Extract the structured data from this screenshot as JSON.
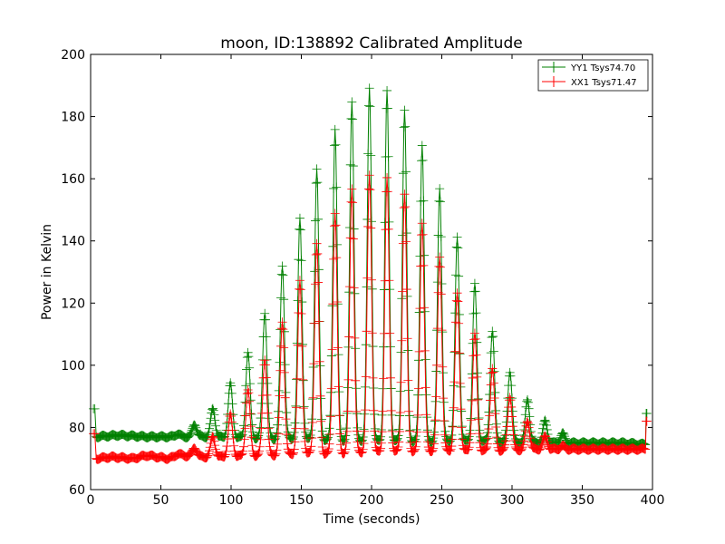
{
  "chart_data": {
    "type": "line",
    "title": "moon, ID:138892 Calibrated Amplitude",
    "xlabel": "Time (seconds)",
    "ylabel": "Power in Kelvin",
    "xlim": [
      0,
      400
    ],
    "ylim": [
      60,
      200
    ],
    "xticks": [
      "0",
      "50",
      "100",
      "150",
      "200",
      "250",
      "300",
      "350",
      "400"
    ],
    "yticks": [
      "60",
      "80",
      "100",
      "120",
      "140",
      "160",
      "180",
      "200"
    ],
    "grid": false,
    "legend_position": "top-right",
    "marker": "plus",
    "series": [
      {
        "name": "YY1 Tsys74.70",
        "color": "#008000",
        "start": [
          [
            2,
            86
          ],
          [
            3,
            86
          ],
          [
            4,
            77
          ]
        ],
        "base_points": [
          [
            4,
            77
          ],
          [
            20,
            77.5
          ],
          [
            40,
            77
          ],
          [
            60,
            77
          ],
          [
            80,
            77
          ],
          [
            120,
            76.5
          ],
          [
            160,
            76
          ],
          [
            200,
            75.5
          ],
          [
            240,
            75.5
          ],
          [
            280,
            75.5
          ],
          [
            320,
            75
          ],
          [
            350,
            75
          ],
          [
            380,
            75
          ],
          [
            395,
            74.5
          ]
        ],
        "peaks": [
          {
            "x": 62,
            "y": 78
          },
          {
            "x": 74,
            "y": 81
          },
          {
            "x": 87,
            "y": 86
          },
          {
            "x": 99.5,
            "y": 94
          },
          {
            "x": 112,
            "y": 104
          },
          {
            "x": 124,
            "y": 117
          },
          {
            "x": 136.5,
            "y": 132
          },
          {
            "x": 149,
            "y": 147
          },
          {
            "x": 161,
            "y": 163
          },
          {
            "x": 174,
            "y": 176
          },
          {
            "x": 186,
            "y": 185
          },
          {
            "x": 198.5,
            "y": 189
          },
          {
            "x": 211,
            "y": 188
          },
          {
            "x": 223.5,
            "y": 182
          },
          {
            "x": 236,
            "y": 171
          },
          {
            "x": 248.5,
            "y": 157
          },
          {
            "x": 261,
            "y": 141
          },
          {
            "x": 273.5,
            "y": 126
          },
          {
            "x": 286,
            "y": 111
          },
          {
            "x": 298.5,
            "y": 98
          },
          {
            "x": 311,
            "y": 89
          },
          {
            "x": 323.5,
            "y": 82
          },
          {
            "x": 336,
            "y": 78
          }
        ],
        "end": [
          [
            395,
            74.5
          ],
          [
            395.5,
            84.5
          ],
          [
            396,
            84.5
          ]
        ]
      },
      {
        "name": "XX1 Tsys71.47",
        "color": "#ff0000",
        "start": [
          [
            2,
            78
          ],
          [
            3,
            78
          ],
          [
            4,
            70
          ]
        ],
        "base_points": [
          [
            4,
            70
          ],
          [
            15,
            70.5
          ],
          [
            30,
            70
          ],
          [
            40,
            71
          ],
          [
            55,
            70
          ],
          [
            65,
            71
          ],
          [
            80,
            70.5
          ],
          [
            95,
            70.5
          ],
          [
            120,
            71
          ],
          [
            160,
            71.5
          ],
          [
            200,
            72
          ],
          [
            240,
            72.5
          ],
          [
            280,
            72.5
          ],
          [
            320,
            73
          ],
          [
            350,
            73
          ],
          [
            370,
            73
          ],
          [
            385,
            73
          ],
          [
            395,
            73
          ]
        ],
        "peaks": [
          {
            "x": 62,
            "y": 71.5
          },
          {
            "x": 74,
            "y": 73.5
          },
          {
            "x": 87,
            "y": 77
          },
          {
            "x": 99.5,
            "y": 84
          },
          {
            "x": 112,
            "y": 92
          },
          {
            "x": 124,
            "y": 102
          },
          {
            "x": 136.5,
            "y": 114
          },
          {
            "x": 149,
            "y": 127
          },
          {
            "x": 161,
            "y": 139
          },
          {
            "x": 174,
            "y": 149
          },
          {
            "x": 186,
            "y": 157
          },
          {
            "x": 198.5,
            "y": 161
          },
          {
            "x": 211,
            "y": 160
          },
          {
            "x": 223.5,
            "y": 155
          },
          {
            "x": 236,
            "y": 146
          },
          {
            "x": 248.5,
            "y": 135
          },
          {
            "x": 261,
            "y": 123
          },
          {
            "x": 273.5,
            "y": 110
          },
          {
            "x": 286,
            "y": 99
          },
          {
            "x": 298.5,
            "y": 90
          },
          {
            "x": 311,
            "y": 82
          },
          {
            "x": 323.5,
            "y": 77
          },
          {
            "x": 336,
            "y": 74
          }
        ],
        "end": [
          [
            395,
            73
          ],
          [
            395.5,
            82
          ],
          [
            396,
            82
          ]
        ]
      }
    ]
  }
}
